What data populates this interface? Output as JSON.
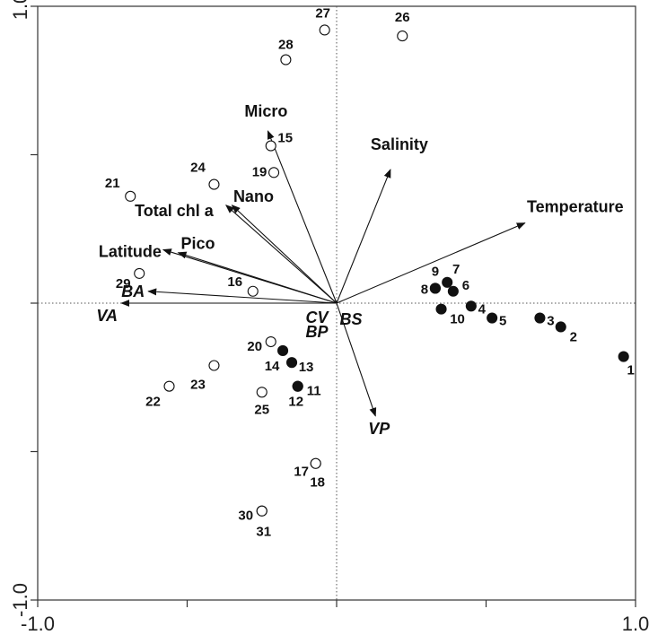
{
  "chart_data": {
    "type": "scatter",
    "title": "",
    "xlabel": "",
    "ylabel": "",
    "xlim": [
      -1.0,
      1.0
    ],
    "ylim": [
      -1.0,
      1.0
    ],
    "x_tick_labels": [
      "-1.0",
      "1.0"
    ],
    "y_tick_labels": [
      "1.0",
      "-1.0"
    ],
    "grid": false,
    "zero_lines": true,
    "colors": {
      "points": "#111111",
      "arrows": "#111111",
      "axes": "#333333",
      "fill_closed": "#111111",
      "fill_open": "#ffffff"
    },
    "series": [
      {
        "marker": "filled-circle",
        "points": [
          {
            "label": "1",
            "x": 0.96,
            "y": -0.18
          },
          {
            "label": "2",
            "x": 0.75,
            "y": -0.08
          },
          {
            "label": "3",
            "x": 0.68,
            "y": -0.05
          },
          {
            "label": "4",
            "x": 0.45,
            "y": -0.01
          },
          {
            "label": "5",
            "x": 0.52,
            "y": -0.05
          },
          {
            "label": "6",
            "x": 0.39,
            "y": 0.04
          },
          {
            "label": "7",
            "x": 0.37,
            "y": 0.07
          },
          {
            "label": "8",
            "x": 0.33,
            "y": 0.05
          },
          {
            "label": "9",
            "x": 0.33,
            "y": 0.05
          },
          {
            "label": "10",
            "x": 0.35,
            "y": -0.02
          },
          {
            "label": "11",
            "x": -0.13,
            "y": -0.28
          },
          {
            "label": "12",
            "x": -0.13,
            "y": -0.28
          },
          {
            "label": "13",
            "x": -0.15,
            "y": -0.2
          },
          {
            "label": "14",
            "x": -0.18,
            "y": -0.16
          }
        ]
      },
      {
        "marker": "open-circle",
        "points": [
          {
            "label": "15",
            "x": -0.22,
            "y": 0.53
          },
          {
            "label": "16",
            "x": -0.28,
            "y": 0.04
          },
          {
            "label": "17",
            "x": -0.07,
            "y": -0.54
          },
          {
            "label": "18",
            "x": -0.07,
            "y": -0.54
          },
          {
            "label": "19",
            "x": -0.21,
            "y": 0.44
          },
          {
            "label": "20",
            "x": -0.22,
            "y": -0.13
          },
          {
            "label": "21",
            "x": -0.69,
            "y": 0.36
          },
          {
            "label": "22",
            "x": -0.56,
            "y": -0.28
          },
          {
            "label": "23",
            "x": -0.41,
            "y": -0.21
          },
          {
            "label": "24",
            "x": -0.41,
            "y": 0.4
          },
          {
            "label": "25",
            "x": -0.25,
            "y": -0.3
          },
          {
            "label": "26",
            "x": 0.22,
            "y": 0.9
          },
          {
            "label": "27",
            "x": -0.04,
            "y": 0.92
          },
          {
            "label": "28",
            "x": -0.17,
            "y": 0.82
          },
          {
            "label": "29",
            "x": -0.66,
            "y": 0.1
          },
          {
            "label": "30",
            "x": -0.25,
            "y": -0.7
          },
          {
            "label": "31",
            "x": -0.25,
            "y": -0.7
          }
        ]
      }
    ],
    "vectors": [
      {
        "label": "Micro",
        "x": -0.23,
        "y": 0.58,
        "italic": false
      },
      {
        "label": "Salinity",
        "x": 0.18,
        "y": 0.45,
        "italic": false
      },
      {
        "label": "Nano",
        "x": -0.35,
        "y": 0.33,
        "italic": false
      },
      {
        "label": "Total chl a",
        "x": -0.37,
        "y": 0.33,
        "italic": false
      },
      {
        "label": "Temperature",
        "x": 0.63,
        "y": 0.27,
        "italic": false
      },
      {
        "label": "Pico",
        "x": -0.53,
        "y": 0.17,
        "italic": false
      },
      {
        "label": "Latitude",
        "x": -0.58,
        "y": 0.18,
        "italic": false
      },
      {
        "label": "BA",
        "x": -0.63,
        "y": 0.04,
        "italic": true
      },
      {
        "label": "VA",
        "x": -0.72,
        "y": 0.0,
        "italic": true
      },
      {
        "label": "VP",
        "x": 0.13,
        "y": -0.38,
        "italic": true
      },
      {
        "label": "CV",
        "x": 0.0,
        "y": 0.0,
        "italic": true
      },
      {
        "label": "BS",
        "x": 0.0,
        "y": 0.0,
        "italic": true
      },
      {
        "label": "BP",
        "x": 0.0,
        "y": 0.0,
        "italic": true
      }
    ]
  }
}
